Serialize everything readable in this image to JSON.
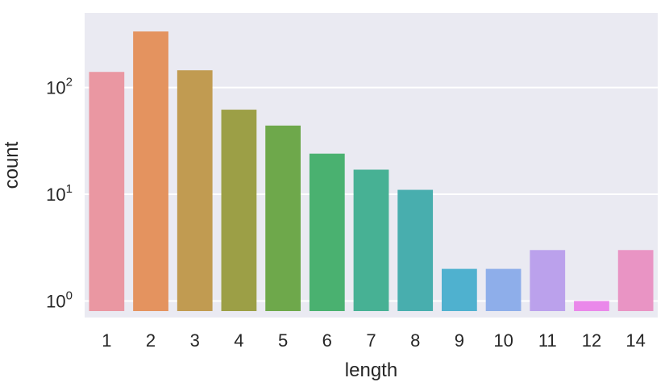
{
  "chart_data": {
    "type": "bar",
    "xlabel": "length",
    "ylabel": "count",
    "yscale": "log",
    "ylim": [
      0.7,
      500
    ],
    "grid": true,
    "categories": [
      "1",
      "2",
      "3",
      "4",
      "5",
      "6",
      "7",
      "8",
      "9",
      "10",
      "11",
      "12",
      "14"
    ],
    "values": [
      140,
      335,
      145,
      62,
      44,
      24,
      17,
      11,
      2,
      2,
      3,
      1,
      3
    ],
    "colors": [
      "#ea97a2",
      "#e4935f",
      "#c19b51",
      "#9c9f46",
      "#6ea84b",
      "#4ab170",
      "#47b194",
      "#48aeae",
      "#4fb1cf",
      "#8eaeea",
      "#bba1ec",
      "#ea88ea",
      "#e994c4"
    ],
    "yticks": [
      {
        "value": 1,
        "base": "10",
        "exp": "0"
      },
      {
        "value": 10,
        "base": "10",
        "exp": "1"
      },
      {
        "value": 100,
        "base": "10",
        "exp": "2"
      }
    ],
    "background": "#eaeaf2",
    "gridcolor": "#ffffff"
  }
}
